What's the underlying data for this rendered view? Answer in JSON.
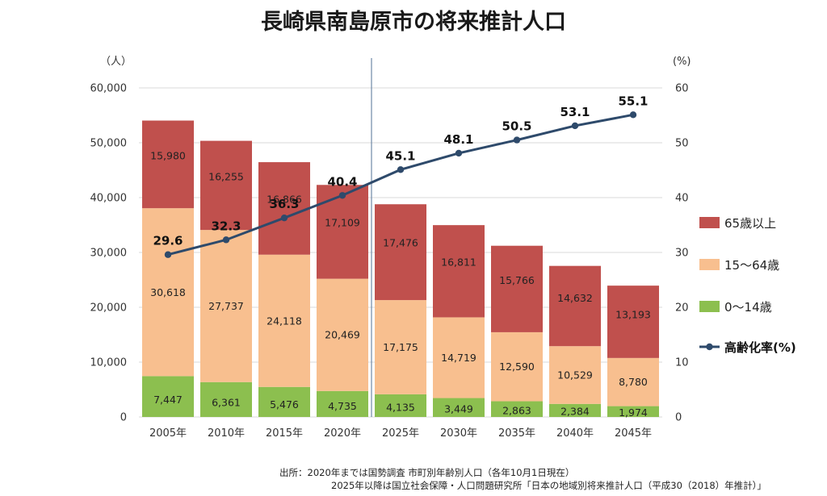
{
  "title": "長崎県南島原市の将来推計人口",
  "chart_data": {
    "type": "bar",
    "stacked": true,
    "title": "長崎県南島原市の将来推計人口",
    "categories": [
      "2005年",
      "2010年",
      "2015年",
      "2020年",
      "2025年",
      "2030年",
      "2035年",
      "2040年",
      "2045年"
    ],
    "series": [
      {
        "name": "0～14歳",
        "color": "#8cbf4f",
        "values": [
          7447,
          6361,
          5476,
          4735,
          4135,
          3449,
          2863,
          2384,
          1974
        ],
        "labels": [
          "7,447",
          "6,361",
          "5,476",
          "4,735",
          "4,135",
          "3,449",
          "2,863",
          "2,384",
          "1,974"
        ]
      },
      {
        "name": "15～64歳",
        "color": "#f8bf8f",
        "values": [
          30618,
          27737,
          24118,
          20469,
          17175,
          14719,
          12590,
          10529,
          8780
        ],
        "labels": [
          "30,618",
          "27,737",
          "24,118",
          "20,469",
          "17,175",
          "14,719",
          "12,590",
          "10,529",
          "8,780"
        ]
      },
      {
        "name": "65歳以上",
        "color": "#c0504d",
        "values": [
          15980,
          16255,
          16866,
          17109,
          17476,
          16811,
          15766,
          14632,
          13193
        ],
        "labels": [
          "15,980",
          "16,255",
          "16,866",
          "17,109",
          "17,476",
          "16,811",
          "15,766",
          "14,632",
          "13,193"
        ]
      }
    ],
    "line_series": {
      "name": "高齢化率(%)",
      "color": "#2e4a6b",
      "values": [
        29.6,
        32.3,
        36.3,
        40.4,
        45.1,
        48.1,
        50.5,
        53.1,
        55.1
      ],
      "labels": [
        "29.6",
        "32.3",
        "36.3",
        "40.4",
        "45.1",
        "48.1",
        "50.5",
        "53.1",
        "55.1"
      ]
    },
    "y_left": {
      "unit": "（人）",
      "ylim": [
        0,
        60000
      ],
      "ticks": [
        "0",
        "10,000",
        "20,000",
        "30,000",
        "40,000",
        "50,000",
        "60,000"
      ]
    },
    "y_right": {
      "unit": "(%)",
      "ylim": [
        0,
        60
      ],
      "ticks": [
        "0",
        "10",
        "20",
        "30",
        "40",
        "50",
        "60"
      ]
    },
    "legend_position": "right",
    "grid": true,
    "divider_after_category": "2020年"
  },
  "source": {
    "line1": "出所：2020年までは国勢調査 市町別年齢別人口（各年10月1日現在）",
    "line2": "2025年以降は国立社会保障・人口問題研究所「日本の地域別将来推計人口（平成30（2018）年推計）」"
  }
}
